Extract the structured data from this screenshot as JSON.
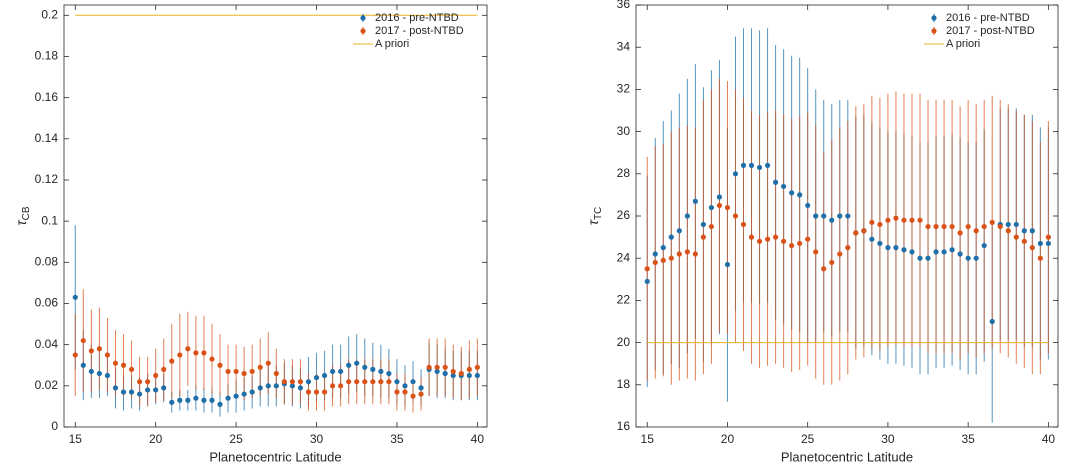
{
  "chart_data": [
    {
      "type": "scatter",
      "xlabel": "Planetocentric Latitude",
      "ylabel": {
        "text": "τ",
        "subscript": "CB"
      },
      "xlim": [
        14.3,
        40.6
      ],
      "ylim": [
        0,
        0.205
      ],
      "xticks": [
        15,
        20,
        25,
        30,
        35,
        40
      ],
      "yticks": [
        0,
        0.02,
        0.04,
        0.06,
        0.08,
        0.1,
        0.12,
        0.14,
        0.16,
        0.18,
        0.2
      ],
      "legend": "upper right",
      "x": [
        15,
        15.5,
        16,
        16.5,
        17,
        17.5,
        18,
        18.5,
        19,
        19.5,
        20,
        20.5,
        21,
        21.5,
        22,
        22.5,
        23,
        23.5,
        24,
        24.5,
        25,
        25.5,
        26,
        26.5,
        27,
        27.5,
        28,
        28.5,
        29,
        29.5,
        30,
        30.5,
        31,
        31.5,
        32,
        32.5,
        33,
        33.5,
        34,
        34.5,
        35,
        35.5,
        36,
        36.5,
        37,
        37.5,
        38,
        38.5,
        39,
        39.5,
        40
      ],
      "series": [
        {
          "name": "2016 - pre-NTBD",
          "color": "#1f6fa8",
          "values": [
            0.063,
            0.03,
            0.027,
            0.026,
            0.025,
            0.019,
            0.017,
            0.017,
            0.016,
            0.018,
            0.018,
            0.019,
            0.012,
            0.013,
            0.013,
            0.014,
            0.013,
            0.013,
            0.011,
            0.014,
            0.015,
            0.016,
            0.017,
            0.019,
            0.02,
            0.02,
            0.021,
            0.02,
            0.019,
            0.022,
            0.024,
            0.025,
            0.027,
            0.027,
            0.03,
            0.031,
            0.029,
            0.028,
            0.027,
            0.026,
            0.022,
            0.02,
            0.022,
            0.019,
            0.028,
            0.027,
            0.026,
            0.025,
            0.025,
            0.025,
            0.025
          ],
          "errors": [
            0.035,
            0.017,
            0.013,
            0.012,
            0.01,
            0.01,
            0.009,
            0.008,
            0.008,
            0.008,
            0.007,
            0.007,
            0.005,
            0.005,
            0.005,
            0.006,
            0.006,
            0.006,
            0.006,
            0.007,
            0.008,
            0.008,
            0.008,
            0.009,
            0.01,
            0.01,
            0.01,
            0.01,
            0.01,
            0.012,
            0.012,
            0.012,
            0.013,
            0.013,
            0.014,
            0.014,
            0.014,
            0.013,
            0.013,
            0.012,
            0.011,
            0.01,
            0.01,
            0.009,
            0.013,
            0.013,
            0.012,
            0.012,
            0.012,
            0.012,
            0.012
          ]
        },
        {
          "name": "2017 - post-NTBD",
          "color": "#d95319",
          "values": [
            0.035,
            0.042,
            0.037,
            0.038,
            0.035,
            0.031,
            0.03,
            0.028,
            0.022,
            0.022,
            0.025,
            0.028,
            0.032,
            0.035,
            0.038,
            0.036,
            0.036,
            0.033,
            0.03,
            0.027,
            0.027,
            0.026,
            0.027,
            0.029,
            0.031,
            0.026,
            0.022,
            0.022,
            0.022,
            0.017,
            0.017,
            0.017,
            0.02,
            0.02,
            0.022,
            0.022,
            0.022,
            0.022,
            0.022,
            0.022,
            0.017,
            0.017,
            0.015,
            0.016,
            0.029,
            0.029,
            0.029,
            0.027,
            0.026,
            0.028,
            0.029
          ],
          "errors": [
            0.02,
            0.025,
            0.02,
            0.02,
            0.018,
            0.016,
            0.015,
            0.014,
            0.012,
            0.012,
            0.013,
            0.015,
            0.018,
            0.02,
            0.018,
            0.018,
            0.018,
            0.017,
            0.015,
            0.013,
            0.013,
            0.013,
            0.013,
            0.014,
            0.015,
            0.012,
            0.011,
            0.011,
            0.011,
            0.009,
            0.009,
            0.009,
            0.01,
            0.01,
            0.011,
            0.011,
            0.011,
            0.011,
            0.011,
            0.011,
            0.009,
            0.009,
            0.008,
            0.008,
            0.014,
            0.014,
            0.014,
            0.013,
            0.013,
            0.014,
            0.014
          ]
        },
        {
          "name": "A priori",
          "color": "#edb120",
          "x": [
            15,
            40
          ],
          "values": [
            0.2,
            0.2
          ]
        }
      ]
    },
    {
      "type": "scatter",
      "xlabel": "Planetocentric Latitude",
      "ylabel": {
        "text": "τ",
        "subscript": "TC"
      },
      "xlim": [
        14.3,
        40.6
      ],
      "ylim": [
        16,
        36
      ],
      "xticks": [
        15,
        20,
        25,
        30,
        35,
        40
      ],
      "yticks": [
        16,
        18,
        20,
        22,
        24,
        26,
        28,
        30,
        32,
        34,
        36
      ],
      "legend": "upper right",
      "x": [
        15,
        15.5,
        16,
        16.5,
        17,
        17.5,
        18,
        18.5,
        19,
        19.5,
        20,
        20.5,
        21,
        21.5,
        22,
        22.5,
        23,
        23.5,
        24,
        24.5,
        25,
        25.5,
        26,
        26.5,
        27,
        27.5,
        28,
        28.5,
        29,
        29.5,
        30,
        30.5,
        31,
        31.5,
        32,
        32.5,
        33,
        33.5,
        34,
        34.5,
        35,
        35.5,
        36,
        36.5,
        37,
        37.5,
        38,
        38.5,
        39,
        39.5,
        40
      ],
      "series": [
        {
          "name": "2016 - pre-NTBD",
          "color": "#1f6fa8",
          "values": [
            22.9,
            24.2,
            24.5,
            25.0,
            25.3,
            26.0,
            26.7,
            25.6,
            26.4,
            26.9,
            23.7,
            28.0,
            28.4,
            28.4,
            28.3,
            28.4,
            27.6,
            27.4,
            27.1,
            27.0,
            26.5,
            26.0,
            26.0,
            25.8,
            26.0,
            26.0,
            25.2,
            25.3,
            24.9,
            24.7,
            24.5,
            24.5,
            24.4,
            24.3,
            24.0,
            24.0,
            24.3,
            24.3,
            24.4,
            24.2,
            24.0,
            24.0,
            24.6,
            21.0,
            25.6,
            25.6,
            25.6,
            25.3,
            25.3,
            24.7,
            24.7
          ],
          "errors": [
            5,
            5.5,
            6,
            6,
            6.5,
            6.5,
            6.5,
            6.5,
            6.5,
            6.5,
            6.5,
            6.5,
            6.5,
            6.5,
            6.5,
            6.5,
            6.5,
            6.5,
            6.5,
            6.5,
            6.5,
            6,
            5.5,
            5.5,
            5.5,
            5.5,
            5.5,
            5.5,
            5.5,
            5.5,
            5.5,
            5.5,
            5.5,
            5.5,
            5.5,
            5.5,
            5.5,
            5.5,
            5.5,
            5.5,
            5.5,
            5.5,
            5.5,
            4.8,
            5.5,
            5.5,
            5.5,
            5.5,
            5.5,
            5.5,
            5.5
          ]
        },
        {
          "name": "2017 - post-NTBD",
          "color": "#d95319",
          "values": [
            23.5,
            23.8,
            23.9,
            24.0,
            24.2,
            24.3,
            24.2,
            25.0,
            25.5,
            26.5,
            26.4,
            26.0,
            25.6,
            25.0,
            24.8,
            24.9,
            25.0,
            24.8,
            24.6,
            24.7,
            24.9,
            24.3,
            23.5,
            23.8,
            24.2,
            24.5,
            25.2,
            25.3,
            25.7,
            25.6,
            25.8,
            25.9,
            25.8,
            25.8,
            25.8,
            25.5,
            25.5,
            25.5,
            25.5,
            25.2,
            25.5,
            25.3,
            25.5,
            25.7,
            25.5,
            25.3,
            25.0,
            24.8,
            24.5,
            24.0,
            25.0
          ],
          "errors": [
            5.3,
            5.5,
            5.5,
            6,
            6,
            6,
            6,
            6.5,
            6.5,
            6,
            6,
            6,
            6,
            6,
            6,
            6,
            6,
            6,
            6,
            6,
            6,
            6,
            5.5,
            5.8,
            6,
            6,
            6,
            6,
            6,
            6,
            6,
            6,
            6,
            6,
            6,
            6,
            6,
            6,
            6,
            6,
            6,
            6,
            6,
            6,
            6,
            6,
            6,
            6,
            6,
            5.5,
            5.5
          ]
        },
        {
          "name": "A priori",
          "color": "#edb120",
          "x": [
            15,
            40
          ],
          "values": [
            20,
            20
          ]
        }
      ]
    }
  ]
}
